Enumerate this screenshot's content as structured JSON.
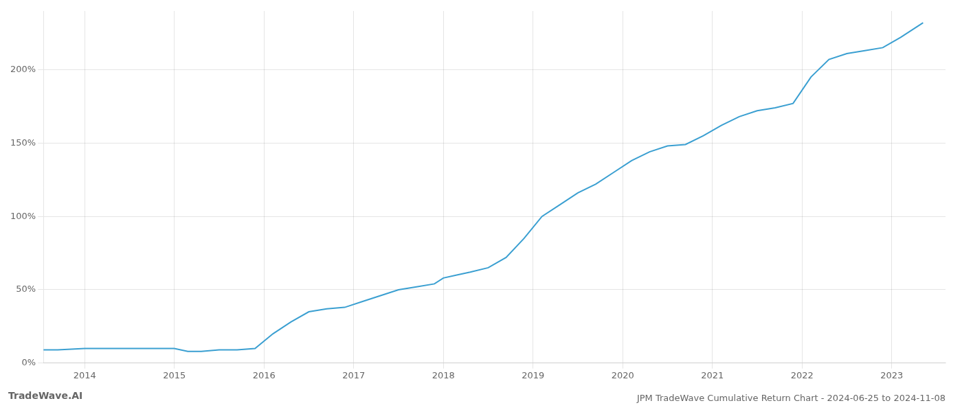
{
  "chart_data": {
    "type": "line",
    "title": "JPM TradeWave Cumulative Return Chart - 2024-06-25 to 2024-11-08",
    "annotations": [
      "TradeWave.AI"
    ],
    "x": [
      2013.54,
      2013.7,
      2014.0,
      2014.3,
      2014.6,
      2014.9,
      2015.0,
      2015.15,
      2015.3,
      2015.5,
      2015.7,
      2015.9,
      2016.1,
      2016.3,
      2016.5,
      2016.7,
      2016.9,
      2017.1,
      2017.3,
      2017.5,
      2017.7,
      2017.9,
      2018.0,
      2018.15,
      2018.3,
      2018.5,
      2018.7,
      2018.9,
      2019.1,
      2019.3,
      2019.5,
      2019.7,
      2019.9,
      2020.1,
      2020.3,
      2020.5,
      2020.7,
      2020.9,
      2021.1,
      2021.3,
      2021.5,
      2021.7,
      2021.9,
      2022.1,
      2022.3,
      2022.5,
      2022.7,
      2022.9,
      2023.1,
      2023.35
    ],
    "values": [
      9,
      9,
      10,
      10,
      10,
      10,
      10,
      8,
      8,
      9,
      9,
      10,
      20,
      28,
      35,
      37,
      38,
      42,
      46,
      50,
      52,
      54,
      58,
      60,
      62,
      65,
      72,
      85,
      100,
      108,
      116,
      122,
      130,
      138,
      144,
      148,
      149,
      155,
      162,
      168,
      172,
      174,
      177,
      195,
      207,
      211,
      213,
      215,
      222,
      232
    ],
    "color": "#3a9fd1",
    "xlim": [
      2013.54,
      2023.6
    ],
    "xticks": [
      2014,
      2015,
      2016,
      2017,
      2018,
      2019,
      2020,
      2021,
      2022,
      2023
    ],
    "ylim": [
      0,
      240
    ],
    "yticks": [
      {
        "value": 0,
        "label": "0%"
      },
      {
        "value": 50,
        "label": "50%"
      },
      {
        "value": 100,
        "label": "100%"
      },
      {
        "value": 150,
        "label": "150%"
      },
      {
        "value": 200,
        "label": "200%"
      }
    ],
    "grid": true
  }
}
